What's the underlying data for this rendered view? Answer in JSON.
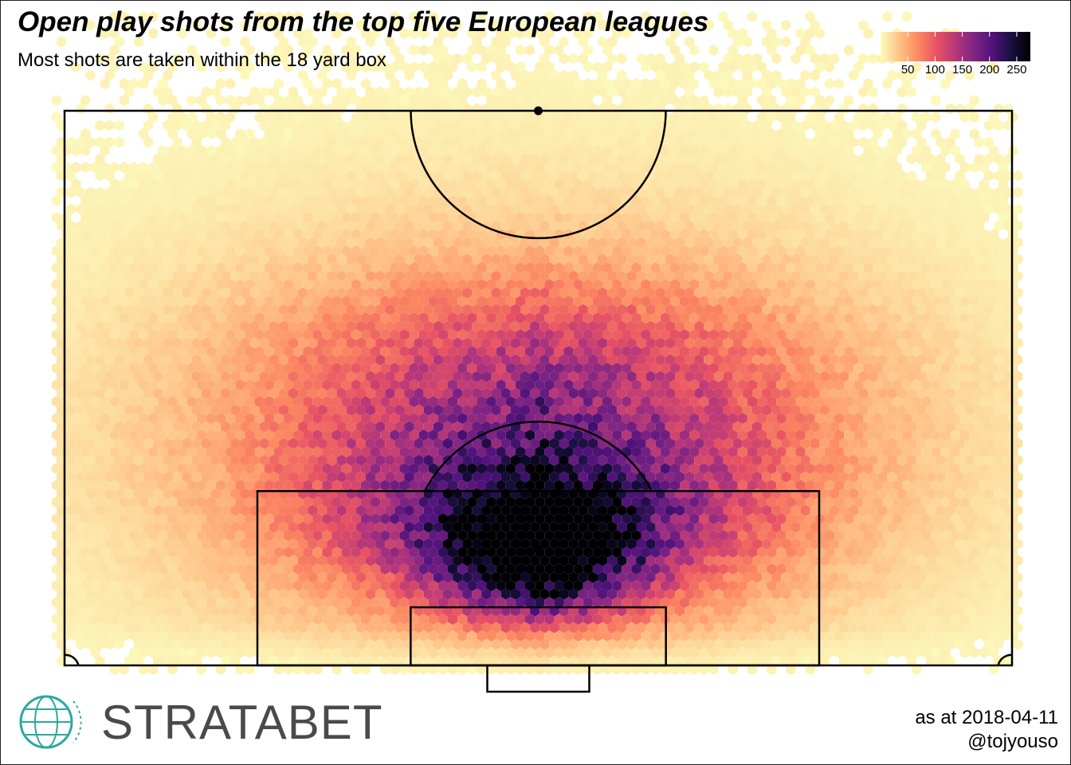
{
  "title": "Open play shots from the top five European leagues",
  "subtitle": "Most shots are taken within the 18 yard box",
  "caption_date": "as at 2018-04-11",
  "caption_handle": "@tojyouso",
  "logo": {
    "text": "STRATABET",
    "icon": "globe-icon"
  },
  "chart_data": {
    "type": "heatmap",
    "subtype": "hexbin",
    "title": "Open play shots from the top five European leagues",
    "subtitle": "Most shots are taken within the 18 yard box",
    "x_range": [
      0,
      68
    ],
    "y_range": [
      0,
      52.5
    ],
    "units": "metres (half pitch, goal at y=0)",
    "legend": {
      "placement": "top-right",
      "ticks": [
        50,
        100,
        150,
        200,
        250
      ],
      "range": [
        0,
        275
      ],
      "colormap": [
        "#fcfdbf",
        "#fec287",
        "#fc8961",
        "#e75263",
        "#b73779",
        "#7e2482",
        "#4f127b",
        "#180f3e",
        "#000004"
      ]
    },
    "density_peaks": [
      {
        "x": 34,
        "y": 8,
        "count": 260,
        "note": "central area between penalty spot and six-yard box"
      },
      {
        "x": 30,
        "y": 8,
        "count": 240
      },
      {
        "x": 38,
        "y": 8,
        "count": 240
      },
      {
        "x": 34,
        "y": 15,
        "count": 150
      },
      {
        "x": 34,
        "y": 21,
        "count": 140
      }
    ],
    "grid": false
  }
}
